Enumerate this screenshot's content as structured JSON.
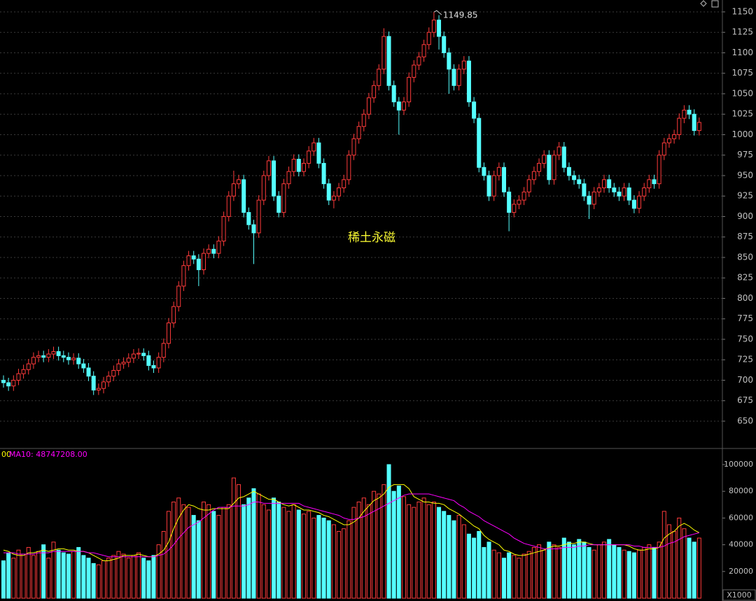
{
  "chart_data": {
    "type": "candlestick",
    "title": "稀土永磁",
    "open": [
      700,
      697,
      693,
      700,
      708,
      713,
      720,
      728,
      730,
      728,
      732,
      735,
      730,
      728,
      725,
      727,
      720,
      715,
      705,
      688,
      690,
      698,
      705,
      712,
      720,
      722,
      727,
      732,
      733,
      730,
      718,
      715,
      728,
      745,
      770,
      790,
      815,
      840,
      852,
      848,
      835,
      855,
      860,
      855,
      870,
      900,
      925,
      940,
      945,
      905,
      890,
      880,
      920,
      950,
      968,
      925,
      905,
      940,
      955,
      970,
      955,
      965,
      980,
      990,
      965,
      940,
      920,
      925,
      935,
      945,
      975,
      995,
      1010,
      1025,
      1045,
      1060,
      1080,
      1120,
      1060,
      1040,
      1030,
      1040,
      1070,
      1085,
      1095,
      1110,
      1125,
      1140,
      1120,
      1100,
      1080,
      1060,
      1080,
      1090,
      1040,
      1020,
      960,
      950,
      925,
      950,
      960,
      930,
      905,
      915,
      920,
      930,
      945,
      955,
      965,
      975,
      945,
      975,
      985,
      960,
      950,
      945,
      940,
      925,
      915,
      930,
      935,
      945,
      935,
      930,
      925,
      935,
      920,
      910,
      925,
      935,
      945,
      940,
      975,
      990,
      995,
      1000,
      1020,
      1030,
      1025,
      1005
    ],
    "high": [
      706,
      703,
      706,
      714,
      719,
      726,
      734,
      736,
      736,
      738,
      741,
      741,
      736,
      734,
      733,
      733,
      726,
      721,
      711,
      696,
      704,
      711,
      718,
      726,
      728,
      733,
      738,
      739,
      739,
      736,
      724,
      734,
      751,
      776,
      796,
      821,
      846,
      858,
      858,
      854,
      861,
      866,
      866,
      876,
      906,
      931,
      956,
      951,
      951,
      911,
      896,
      926,
      956,
      974,
      974,
      931,
      946,
      961,
      976,
      976,
      971,
      986,
      996,
      996,
      971,
      946,
      931,
      941,
      951,
      981,
      1001,
      1016,
      1031,
      1051,
      1066,
      1086,
      1130,
      1126,
      1066,
      1046,
      1046,
      1076,
      1091,
      1101,
      1116,
      1131,
      1149.85,
      1146,
      1126,
      1106,
      1086,
      1086,
      1096,
      1096,
      1046,
      1026,
      966,
      956,
      956,
      966,
      966,
      936,
      921,
      926,
      936,
      951,
      961,
      971,
      981,
      981,
      981,
      991,
      991,
      966,
      956,
      951,
      946,
      931,
      936,
      941,
      951,
      951,
      941,
      936,
      941,
      941,
      926,
      931,
      941,
      951,
      951,
      981,
      996,
      1001,
      1006,
      1026,
      1036,
      1036,
      1031,
      1021
    ],
    "low": [
      691,
      687,
      687,
      694,
      702,
      707,
      714,
      722,
      722,
      722,
      726,
      724,
      722,
      719,
      719,
      714,
      709,
      699,
      682,
      682,
      684,
      692,
      699,
      706,
      714,
      716,
      721,
      726,
      724,
      712,
      709,
      709,
      722,
      739,
      764,
      784,
      809,
      834,
      842,
      815,
      829,
      849,
      849,
      849,
      864,
      894,
      919,
      934,
      899,
      884,
      842,
      874,
      914,
      944,
      919,
      899,
      899,
      934,
      949,
      949,
      949,
      959,
      974,
      959,
      934,
      914,
      910,
      919,
      929,
      939,
      969,
      989,
      1004,
      1019,
      1039,
      1054,
      1074,
      1054,
      1034,
      1000,
      1024,
      1034,
      1064,
      1079,
      1089,
      1104,
      1119,
      1104,
      1094,
      1050,
      1054,
      1054,
      1074,
      1034,
      1014,
      954,
      944,
      919,
      919,
      944,
      924,
      882,
      899,
      909,
      914,
      924,
      939,
      949,
      959,
      939,
      939,
      969,
      954,
      944,
      939,
      934,
      919,
      897,
      909,
      924,
      929,
      929,
      924,
      919,
      919,
      914,
      904,
      904,
      919,
      929,
      934,
      934,
      969,
      984,
      989,
      994,
      1014,
      1019,
      999,
      999
    ],
    "close": [
      697,
      693,
      700,
      708,
      713,
      720,
      728,
      730,
      728,
      732,
      735,
      730,
      728,
      725,
      727,
      720,
      715,
      705,
      688,
      690,
      698,
      705,
      712,
      720,
      722,
      727,
      732,
      733,
      730,
      718,
      715,
      728,
      745,
      770,
      790,
      815,
      840,
      852,
      848,
      835,
      855,
      860,
      855,
      870,
      900,
      925,
      940,
      945,
      905,
      890,
      880,
      920,
      950,
      968,
      925,
      905,
      940,
      955,
      970,
      955,
      965,
      980,
      990,
      965,
      940,
      920,
      925,
      935,
      945,
      975,
      995,
      1010,
      1025,
      1045,
      1060,
      1080,
      1120,
      1060,
      1040,
      1030,
      1040,
      1070,
      1085,
      1095,
      1110,
      1125,
      1140,
      1120,
      1100,
      1080,
      1060,
      1080,
      1090,
      1040,
      1020,
      960,
      950,
      925,
      950,
      960,
      930,
      905,
      915,
      920,
      930,
      945,
      955,
      965,
      975,
      945,
      975,
      985,
      960,
      950,
      945,
      940,
      925,
      915,
      930,
      935,
      945,
      935,
      930,
      925,
      935,
      920,
      910,
      925,
      935,
      945,
      940,
      975,
      990,
      995,
      1000,
      1020,
      1030,
      1025,
      1005,
      1015
    ],
    "up_color": "#ff3b3b",
    "down_color": "#54ffff",
    "ylim": [
      617.5,
      1164.5
    ],
    "yticks": [
      650,
      675,
      700,
      725,
      750,
      775,
      800,
      825,
      850,
      875,
      900,
      925,
      950,
      975,
      1000,
      1025,
      1050,
      1075,
      1100,
      1125,
      1150
    ],
    "grid": true,
    "annotation": {
      "label": "1149.85",
      "value": 1149.85
    },
    "volume": {
      "unit_label": "X1000",
      "ylim": [
        0,
        111000
      ],
      "yticks": [
        20000,
        40000,
        60000,
        80000,
        100000
      ],
      "values": [
        28000,
        34000,
        30000,
        36000,
        33000,
        38000,
        32000,
        35000,
        40000,
        30000,
        42000,
        36000,
        34000,
        33000,
        35000,
        38000,
        32000,
        30000,
        26000,
        25000,
        28000,
        30000,
        32000,
        35000,
        33000,
        30000,
        32000,
        34000,
        30000,
        28000,
        32000,
        40000,
        50000,
        65000,
        72000,
        75000,
        70000,
        68000,
        62000,
        58000,
        72000,
        70000,
        65000,
        62000,
        68000,
        70000,
        90000,
        85000,
        70000,
        75000,
        82000,
        78000,
        70000,
        66000,
        75000,
        72000,
        68000,
        65000,
        70000,
        66000,
        63000,
        65000,
        60000,
        62000,
        60000,
        58000,
        55000,
        50000,
        52000,
        58000,
        68000,
        72000,
        75000,
        70000,
        80000,
        78000,
        85000,
        100000,
        80000,
        84000,
        76000,
        70000,
        68000,
        72000,
        75000,
        70000,
        72000,
        68000,
        65000,
        62000,
        58000,
        62000,
        55000,
        48000,
        45000,
        50000,
        38000,
        42000,
        36000,
        34000,
        30000,
        34000,
        32000,
        30000,
        33000,
        35000,
        38000,
        40000,
        36000,
        42000,
        40000,
        38000,
        45000,
        42000,
        40000,
        44000,
        42000,
        38000,
        36000,
        40000,
        42000,
        44000,
        40000,
        38000,
        36000,
        35000,
        34000,
        36000,
        38000,
        40000,
        38000,
        42000,
        65000,
        55000,
        50000,
        60000,
        52000,
        45000,
        42000,
        45000
      ],
      "series": [
        {
          "name": "00",
          "color": "#ffff00",
          "values": [
            36000,
            35000,
            33000,
            32000,
            32000,
            34000,
            34000,
            35000,
            36000,
            35000,
            36000,
            37000,
            37000,
            36000,
            36000,
            35000,
            35000,
            34000,
            32000,
            30000,
            28000,
            28000,
            29000,
            30000,
            32000,
            32000,
            32000,
            33000,
            32000,
            31000,
            31000,
            33000,
            36000,
            42000,
            52000,
            60000,
            66000,
            70000,
            69000,
            67000,
            66000,
            66000,
            67000,
            67000,
            67000,
            67000,
            71000,
            75000,
            76000,
            78000,
            80000,
            78000,
            76000,
            74000,
            74000,
            72000,
            70000,
            69000,
            70000,
            68000,
            66000,
            66000,
            65000,
            64000,
            62000,
            61000,
            59000,
            57000,
            55000,
            55000,
            57000,
            60000,
            65000,
            69000,
            73000,
            75000,
            78000,
            83000,
            85000,
            85000,
            85000,
            82000,
            76000,
            74000,
            72000,
            72000,
            71000,
            71000,
            70000,
            67000,
            65000,
            63000,
            60000,
            57000,
            54000,
            52000,
            47000,
            44000,
            42000,
            40000,
            36000,
            35000,
            33000,
            32000,
            32000,
            33000,
            34000,
            35000,
            36000,
            38000,
            39000,
            39000,
            40000,
            41000,
            41000,
            42000,
            42000,
            41000,
            40000,
            40000,
            40000,
            40000,
            40000,
            40000,
            40000,
            39000,
            37000,
            36000,
            36000,
            37000,
            37000,
            38000,
            45000,
            48000,
            50000,
            54000,
            56000,
            54000,
            51000,
            49000
          ]
        },
        {
          "name": "MA10: 48747208.00",
          "color": "#ff00ff",
          "values": [
            34000,
            34000,
            34000,
            33000,
            33000,
            33000,
            33000,
            34000,
            34000,
            34000,
            35000,
            35000,
            35000,
            35000,
            35000,
            35000,
            35000,
            34000,
            34000,
            33000,
            32000,
            31000,
            31000,
            31000,
            31000,
            31000,
            31000,
            31000,
            31000,
            31000,
            31000,
            32000,
            33000,
            36000,
            40000,
            45000,
            49000,
            53000,
            55000,
            57000,
            60000,
            63000,
            66000,
            68000,
            68000,
            68000,
            69000,
            69000,
            69000,
            70000,
            72000,
            72000,
            71000,
            71000,
            71000,
            71000,
            71000,
            71000,
            71000,
            71000,
            69000,
            68000,
            67000,
            66000,
            65000,
            64000,
            63000,
            62000,
            60000,
            59000,
            59000,
            60000,
            61000,
            63000,
            65000,
            67000,
            69000,
            71000,
            73000,
            75000,
            77000,
            78000,
            78000,
            78000,
            78000,
            78000,
            77000,
            76000,
            75000,
            74000,
            73000,
            70000,
            68000,
            65000,
            63000,
            61000,
            58000,
            56000,
            54000,
            52000,
            50000,
            48000,
            45000,
            43000,
            41000,
            40000,
            39000,
            38000,
            37000,
            37000,
            37000,
            37000,
            38000,
            38000,
            38000,
            39000,
            39000,
            40000,
            40000,
            40000,
            40000,
            40000,
            40000,
            40000,
            40000,
            40000,
            39000,
            39000,
            38000,
            38000,
            38000,
            38000,
            39000,
            41000,
            42000,
            44000,
            46000,
            47000,
            48000,
            49000
          ]
        }
      ]
    }
  }
}
